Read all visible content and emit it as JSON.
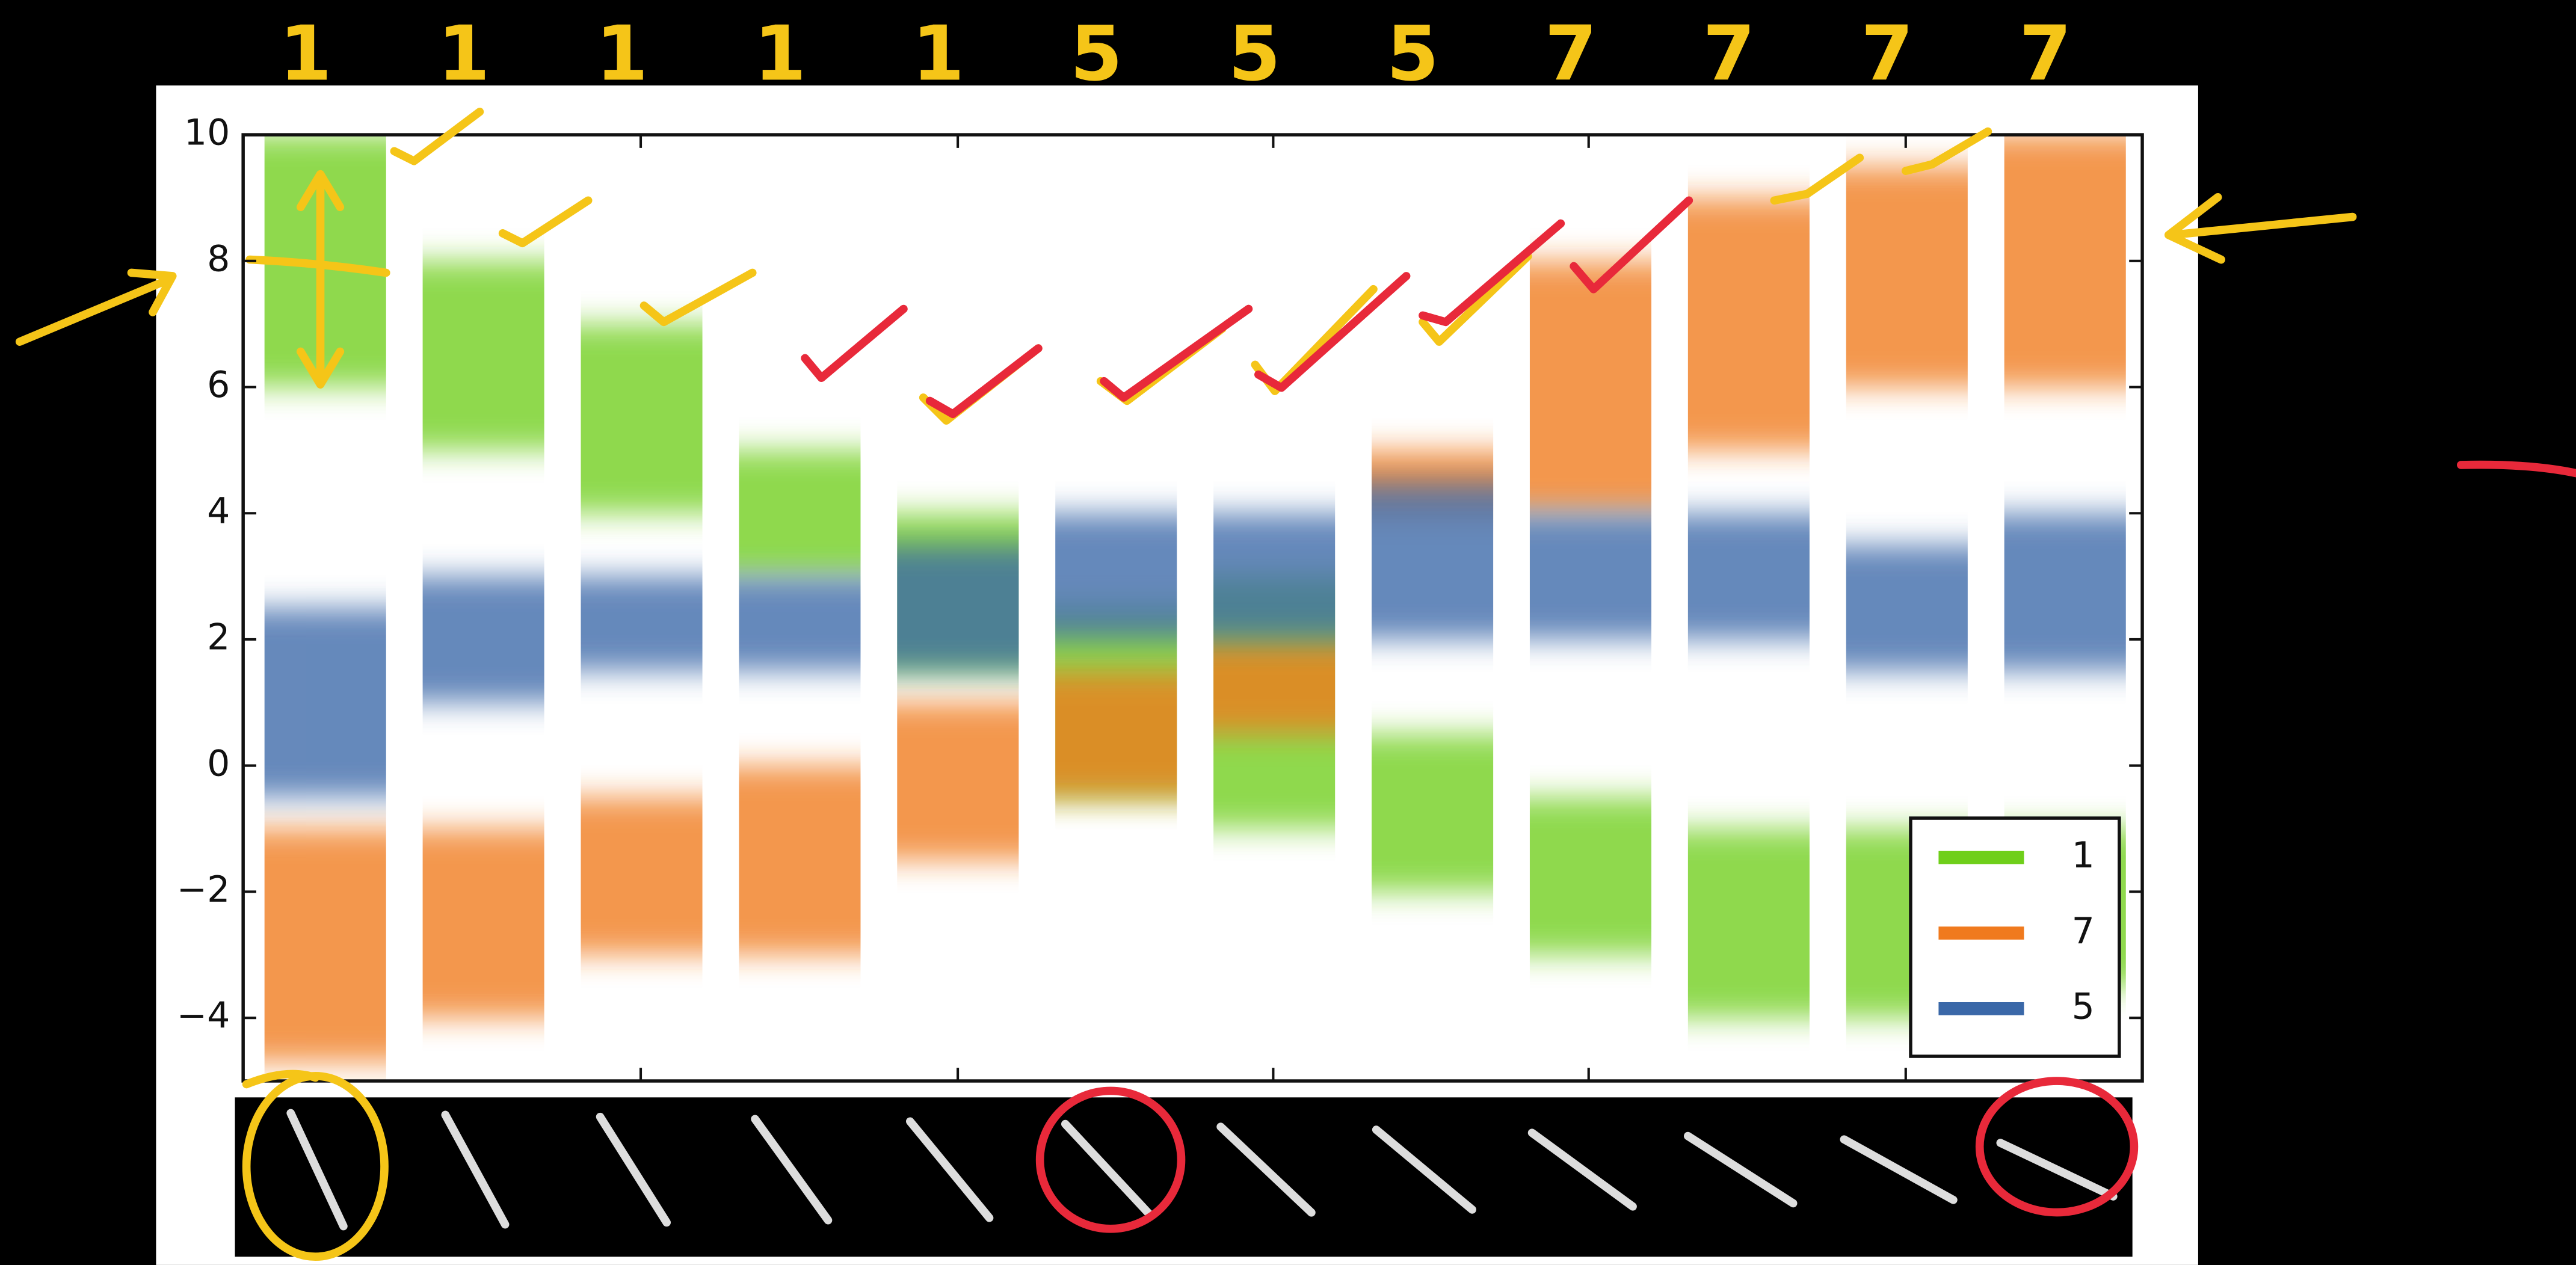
{
  "chart_data": {
    "type": "band",
    "annotations": [
      "1",
      "1",
      "1",
      "1",
      "1",
      "5",
      "5",
      "5",
      "7",
      "7",
      "7",
      "7"
    ],
    "ylim": [
      -5,
      10
    ],
    "yticks": [
      {
        "value": -4,
        "label": "−4"
      },
      {
        "value": -2,
        "label": "−2"
      },
      0,
      2,
      4,
      6,
      8,
      10
    ],
    "legend_position": "lower right",
    "series": [
      {
        "name": "1",
        "color": "#6fcf1a",
        "low": [
          6,
          5,
          4,
          3,
          1.5,
          -0.5,
          -1,
          -2,
          -3,
          -4,
          -4,
          -3.5
        ],
        "high": [
          10,
          8,
          7,
          5,
          4,
          2.5,
          3,
          0.5,
          -0.5,
          -1,
          -1,
          -1
        ]
      },
      {
        "name": "7",
        "color": "#f07a1e",
        "low": [
          -4.7,
          -4,
          -3,
          -3,
          -1.5,
          -0.5,
          0.5,
          4,
          4,
          5,
          6,
          6
        ],
        "high": [
          -1,
          -1,
          -0.5,
          0,
          1,
          1.5,
          2,
          5,
          8,
          9,
          9.5,
          10
        ]
      },
      {
        "name": "5",
        "color": "#3a68a8",
        "low": [
          -0.5,
          1,
          1.5,
          1.5,
          1.5,
          2,
          2,
          2,
          2,
          2,
          1.5,
          1.5
        ],
        "high": [
          2.5,
          3,
          3,
          3,
          3.5,
          4,
          4,
          4.5,
          4,
          4,
          3.5,
          4
        ]
      }
    ]
  }
}
